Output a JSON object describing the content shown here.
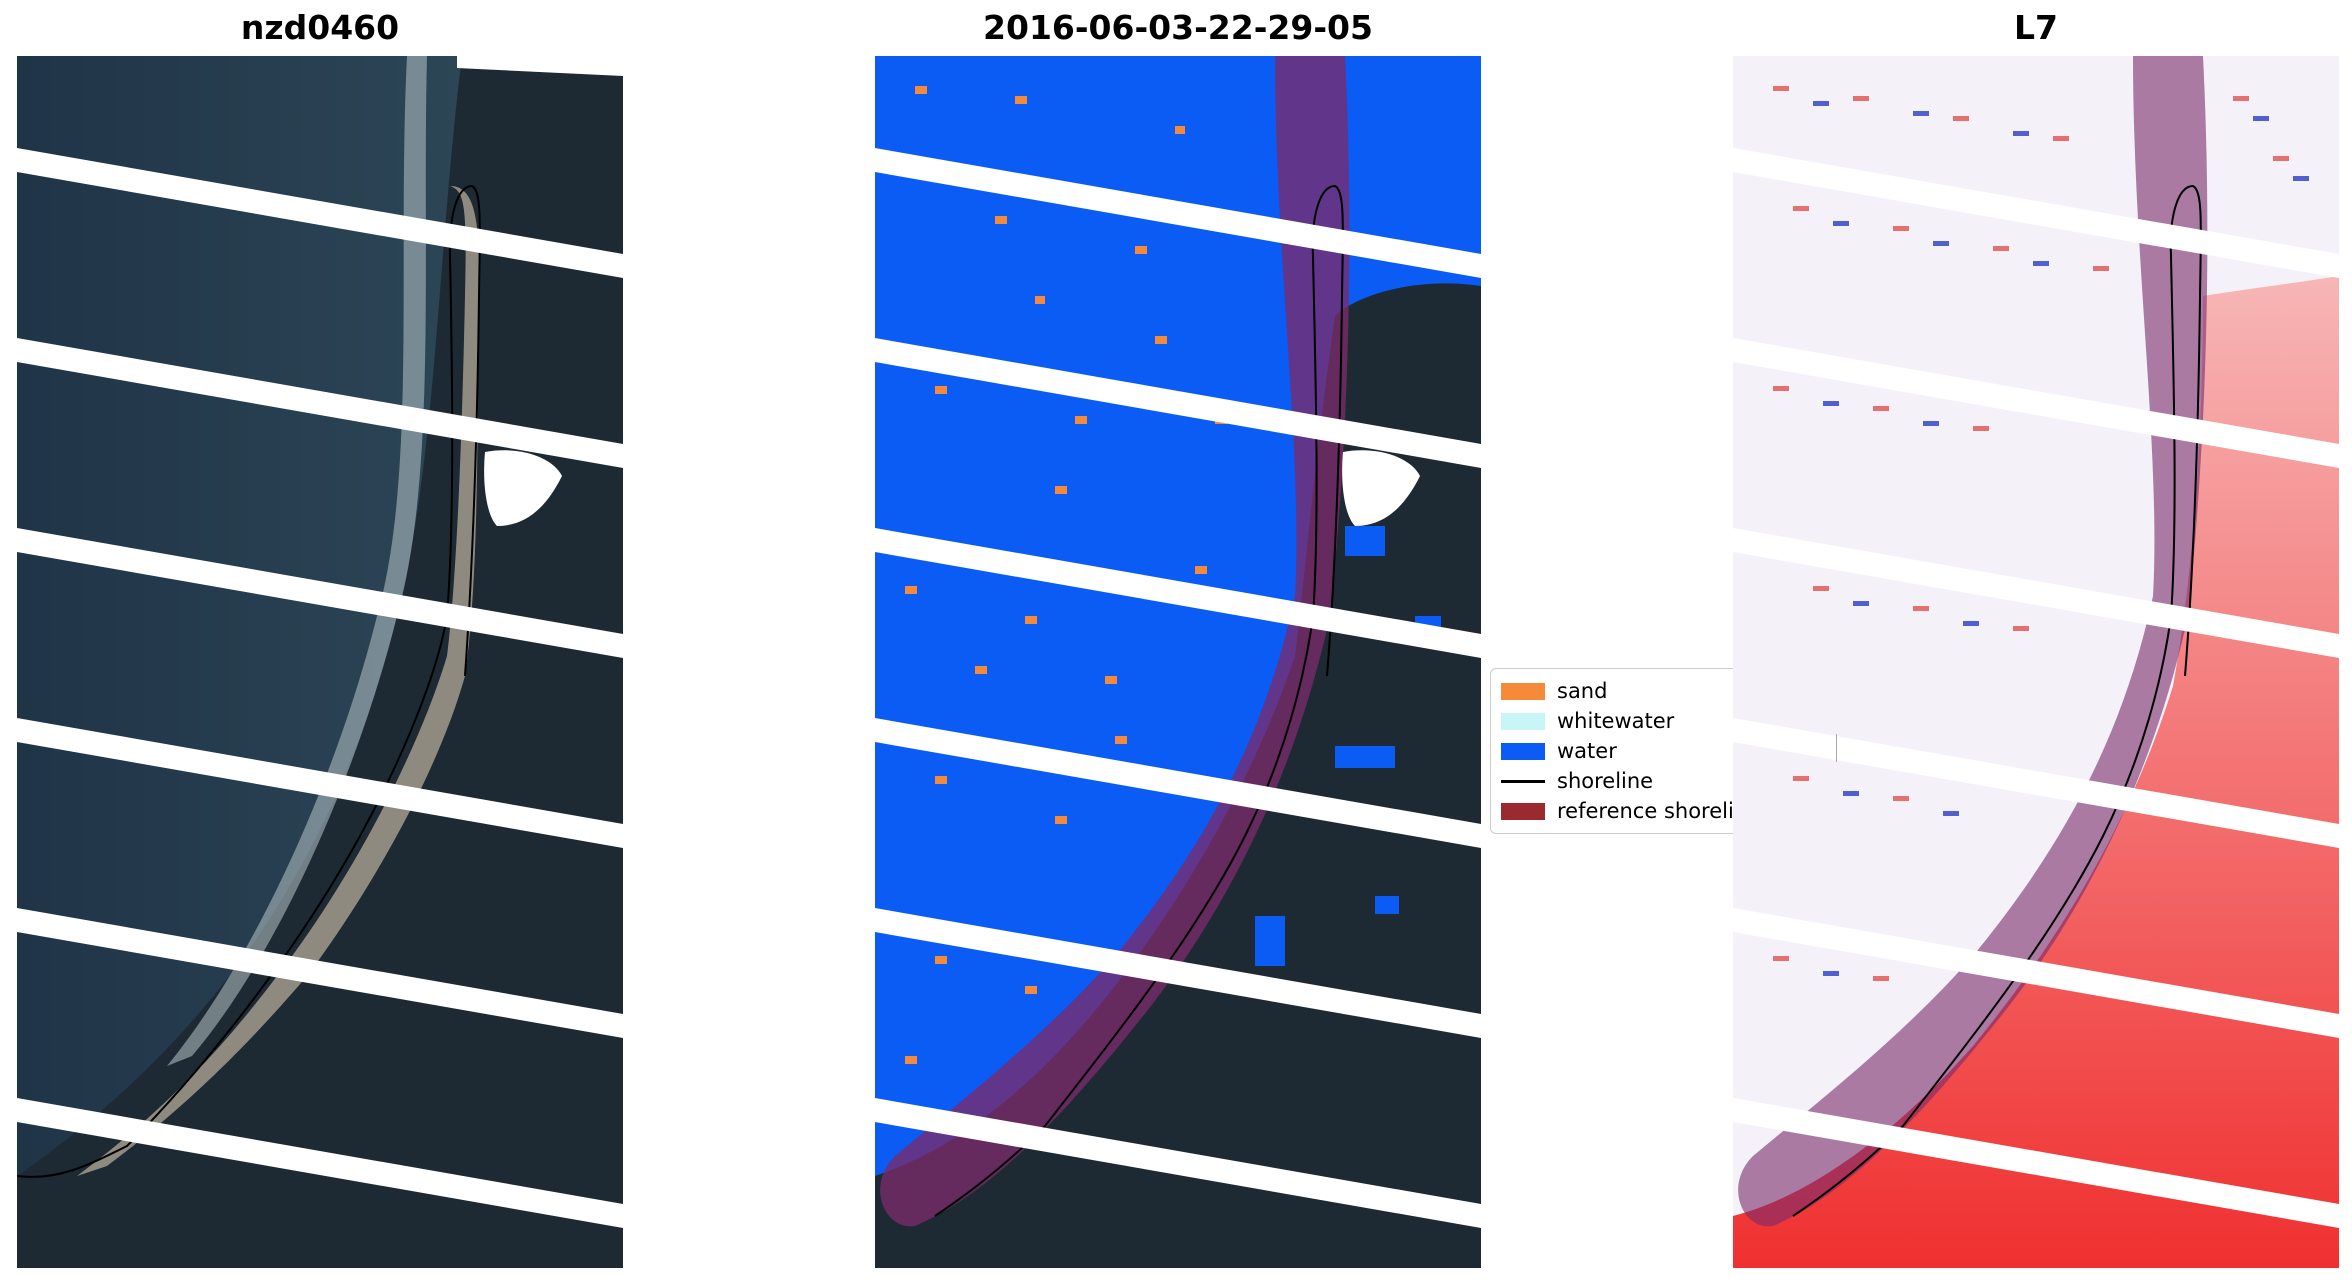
{
  "panels": [
    {
      "title": "nzd0460"
    },
    {
      "title": "2016-06-03-22-29-05"
    },
    {
      "title": "L7"
    }
  ],
  "legend": {
    "items": [
      {
        "label": "sand",
        "color": "#f58a3a"
      },
      {
        "label": "whitewater",
        "color": "#c8f5f5"
      },
      {
        "label": "water",
        "color": "#0a5cf5"
      },
      {
        "label": "shoreline",
        "color": "#000000"
      },
      {
        "label": "reference shoreli",
        "color": "#9a2a30"
      }
    ]
  },
  "colors": {
    "dark_land": "#1f2a33",
    "ocean": "#24384a",
    "sand_beach": "#8f8a80",
    "water_class": "#0a5cf5",
    "sand_class": "#f58a3a",
    "buffer": "#7a2a6a",
    "index_red": "#f03030",
    "index_blue": "#3040c8"
  }
}
